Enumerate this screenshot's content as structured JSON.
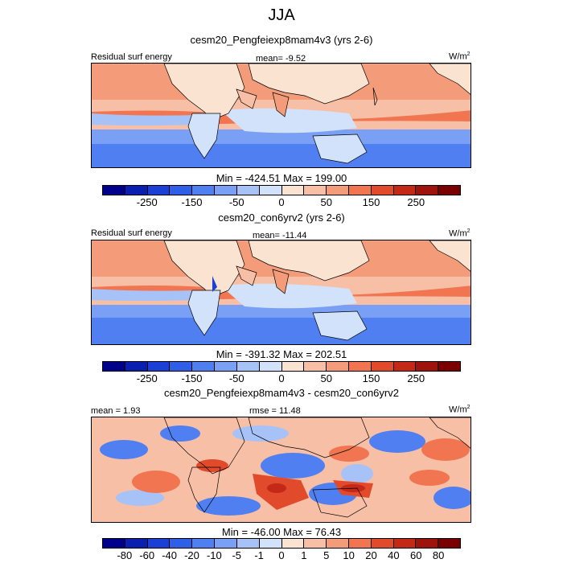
{
  "title": "JJA",
  "panels": [
    {
      "name": "cesm20_Pengfeiexp8mam4v3 (yrs 2-6)",
      "left_label": "Residual surf energy",
      "center_label": "mean=  -9.52",
      "units": "W/m",
      "units_sup": "2",
      "stats": "Min = -424.51 Max = 199.00"
    },
    {
      "name": "cesm20_con6yrv2 (yrs 2-6)",
      "left_label": "Residual surf energy",
      "center_label": "mean= -11.44",
      "units": "W/m",
      "units_sup": "2",
      "stats": "Min = -391.32 Max = 202.51"
    },
    {
      "name": "cesm20_Pengfeiexp8mam4v3 - cesm20_con6yrv2",
      "left_label": "mean =   1.93",
      "center_label": "rmse =  11.48",
      "units": "W/m",
      "units_sup": "2",
      "stats": "Min = -46.00 Max = 76.43"
    }
  ],
  "colorbar_abs": {
    "colors": [
      "#00008b",
      "#0a1fb0",
      "#1c3fd6",
      "#2f5fe6",
      "#4f7ff0",
      "#7aa0f5",
      "#a6c2f7",
      "#d2e2fb",
      "#fbe3d2",
      "#f7c0a6",
      "#f49c7a",
      "#f07550",
      "#e24a2c",
      "#c42816",
      "#9e130b",
      "#7a0000"
    ],
    "ticks": [
      "-250",
      "-150",
      "-50",
      "0",
      "50",
      "150",
      "250"
    ],
    "tick_index": [
      2,
      4,
      6,
      8,
      10,
      12,
      14
    ]
  },
  "colorbar_diff": {
    "colors": [
      "#00008b",
      "#0a1fb0",
      "#1c3fd6",
      "#2f5fe6",
      "#4f7ff0",
      "#7aa0f5",
      "#a6c2f7",
      "#d2e2fb",
      "#fbe3d2",
      "#f7c0a6",
      "#f49c7a",
      "#f07550",
      "#e24a2c",
      "#c42816",
      "#9e130b",
      "#7a0000"
    ],
    "ticks": [
      "-80",
      "-60",
      "-40",
      "-20",
      "-10",
      "-5",
      "-1",
      "0",
      "1",
      "5",
      "10",
      "20",
      "40",
      "60",
      "80"
    ],
    "tick_index": [
      1,
      2,
      3,
      4,
      5,
      6,
      7,
      8,
      9,
      10,
      11,
      12,
      13,
      14,
      15
    ]
  }
}
